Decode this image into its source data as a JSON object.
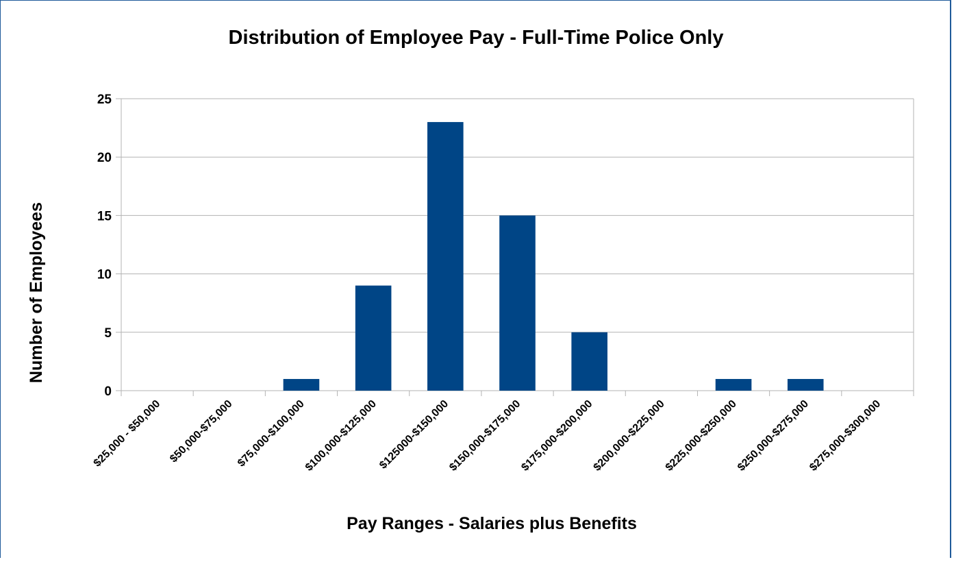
{
  "chart_data": {
    "type": "bar",
    "title": "Distribution of Employee Pay - Full-Time Police Only",
    "xlabel": "Pay Ranges - Salaries plus Benefits",
    "ylabel": "Number of Employees",
    "categories": [
      "$25,000 - $50,000",
      "$50,000-$75,000",
      "$75,000-$100,000",
      "$100,000-$125,000",
      "$125000-$150,000",
      "$150,000-$175,000",
      "$175,000-$200,000",
      "$200,000-$225,000",
      "$225,000-$250,000",
      "$250,000-$275,000",
      "$275,000-$300,000"
    ],
    "values": [
      0,
      0,
      1,
      9,
      23,
      15,
      5,
      0,
      1,
      1,
      0
    ],
    "ylim": [
      0,
      25
    ],
    "yticks": [
      0,
      5,
      10,
      15,
      20,
      25
    ],
    "grid": true,
    "legend": "none",
    "colors": {
      "bar": "#004586",
      "grid": "#b3b3b3",
      "frame": "#1f5a9a"
    }
  }
}
